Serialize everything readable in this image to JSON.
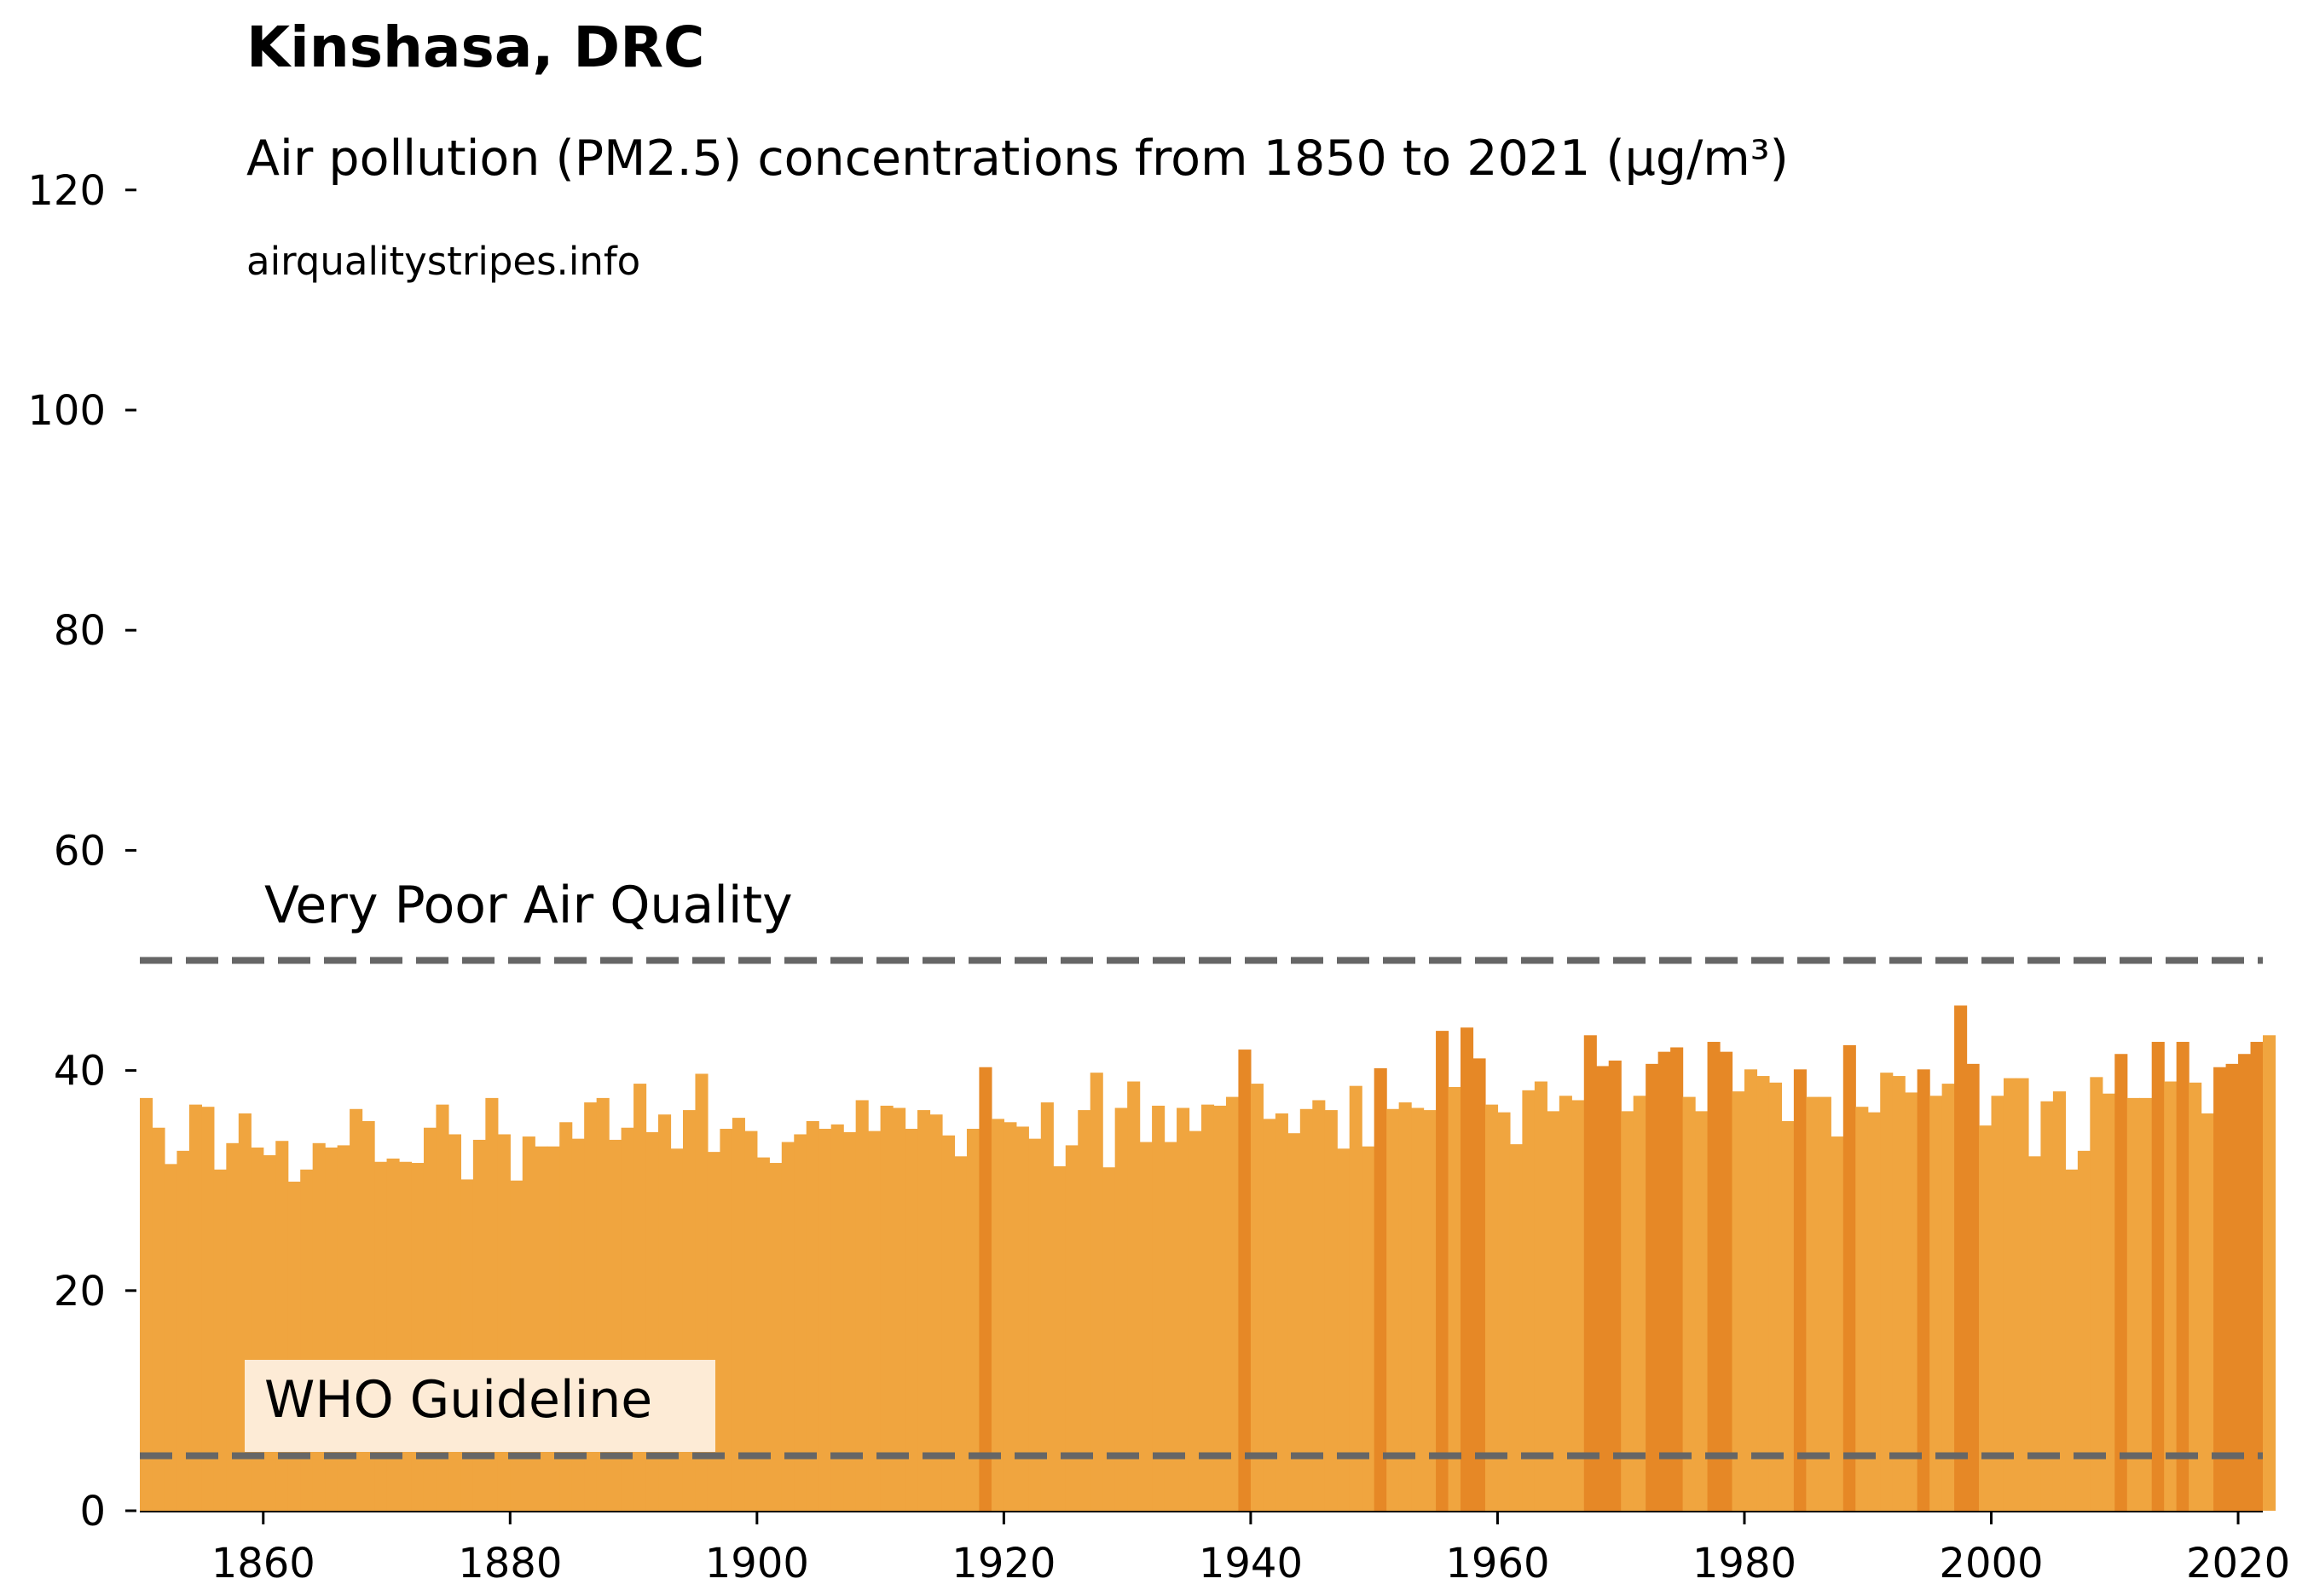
{
  "chart_data": {
    "type": "bar",
    "title": "Kinshasa, DRC",
    "subtitle": "Air pollution (PM2.5) concentrations from 1850 to 2021 (µg/m³)",
    "source": "airqualitystripes.info",
    "xlabel": "",
    "ylabel": "",
    "xlim": [
      1850,
      2022
    ],
    "ylim": [
      0,
      130
    ],
    "x_ticks": [
      1860,
      1880,
      1900,
      1920,
      1940,
      1960,
      1980,
      2000,
      2020
    ],
    "y_ticks": [
      0,
      20,
      40,
      60,
      80,
      100,
      120
    ],
    "start_year": 1850,
    "values": [
      37.5,
      34.8,
      31.5,
      32.7,
      36.9,
      36.7,
      31.0,
      33.4,
      36.1,
      33.0,
      32.3,
      33.6,
      29.9,
      31.0,
      33.4,
      33.0,
      33.2,
      36.5,
      35.4,
      31.7,
      32.0,
      31.7,
      31.6,
      34.8,
      36.9,
      34.2,
      30.1,
      33.7,
      37.5,
      34.2,
      30.0,
      34.0,
      33.1,
      33.1,
      35.3,
      33.8,
      37.1,
      37.5,
      33.7,
      34.8,
      38.8,
      34.4,
      36.0,
      32.9,
      36.4,
      39.7,
      32.6,
      34.7,
      35.7,
      34.5,
      32.1,
      31.6,
      33.5,
      34.2,
      35.4,
      34.7,
      35.1,
      34.4,
      37.3,
      34.5,
      36.8,
      36.6,
      34.7,
      36.4,
      36.0,
      34.1,
      32.2,
      34.7,
      40.3,
      35.6,
      35.3,
      34.9,
      33.8,
      37.1,
      31.3,
      33.2,
      36.4,
      39.8,
      31.2,
      36.6,
      39.0,
      33.5,
      36.8,
      33.5,
      36.6,
      34.5,
      36.9,
      36.8,
      37.6,
      41.9,
      38.8,
      35.6,
      36.1,
      34.3,
      36.5,
      37.3,
      36.4,
      32.9,
      38.6,
      33.1,
      40.2,
      36.5,
      37.1,
      36.6,
      36.4,
      43.6,
      38.5,
      43.9,
      41.1,
      36.9,
      36.2,
      33.3,
      38.2,
      39.0,
      36.3,
      37.7,
      37.3,
      43.2,
      40.4,
      40.9,
      36.3,
      37.7,
      40.6,
      41.7,
      42.1,
      37.6,
      36.3,
      42.6,
      41.7,
      38.1,
      40.1,
      39.5,
      38.9,
      35.4,
      40.1,
      37.6,
      37.6,
      34.0,
      42.3,
      36.7,
      36.2,
      39.8,
      39.5,
      38.0,
      40.1,
      37.7,
      38.8,
      45.9,
      40.6,
      35.0,
      37.7,
      39.3,
      39.3,
      32.2,
      37.2,
      38.1,
      31.0,
      32.7,
      39.4,
      37.9,
      41.5,
      37.5,
      37.5,
      42.6,
      39.0,
      42.6,
      38.9,
      36.1,
      40.3,
      40.6,
      41.5,
      42.6,
      43.2
    ],
    "highlight_years": [
      1918,
      1939,
      1950,
      1955,
      1957,
      1958,
      1967,
      1968,
      1969,
      1972,
      1973,
      1974,
      1977,
      1978,
      1984,
      1988,
      1994,
      1997,
      1998,
      2010,
      2013,
      2015,
      2018,
      2019,
      2020,
      2021
    ],
    "bar_color": "#f0a53f",
    "highlight_color": "#e68826",
    "reference_lines": [
      {
        "value": 50,
        "label": "Very Poor Air Quality",
        "color": "#666666"
      },
      {
        "value": 5,
        "label": "WHO Guideline",
        "color": "#666666",
        "label_bg": "#fdebd6"
      }
    ]
  }
}
